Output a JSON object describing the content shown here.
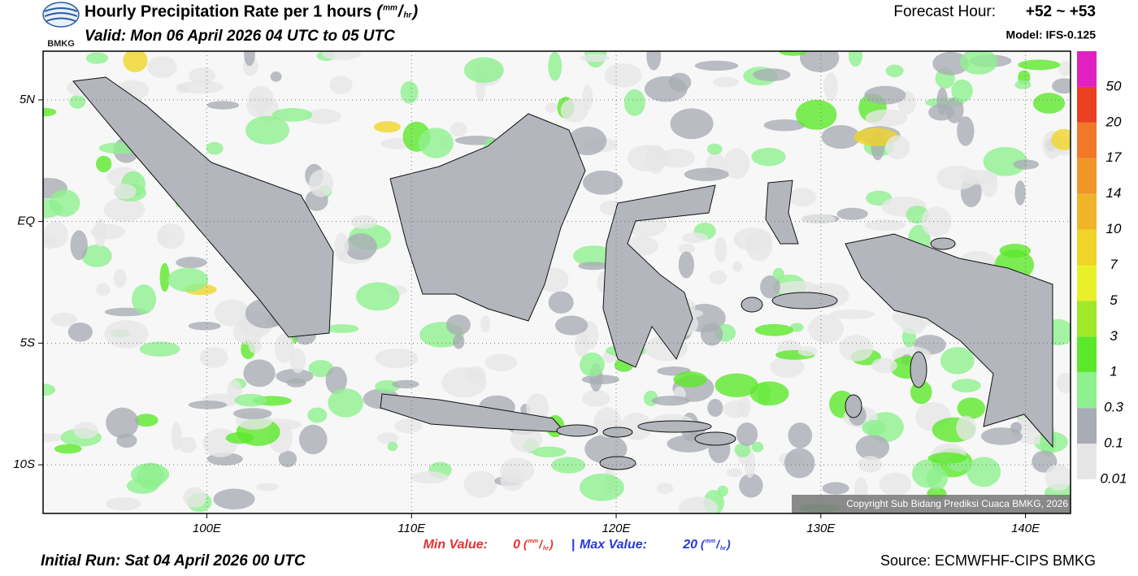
{
  "header": {
    "logo": "BMKG",
    "title": "Hourly Precipitation Rate per 1 hours",
    "unit": {
      "open": "(",
      "num": "mm",
      "sep": "/",
      "den": "hr",
      "close": ")"
    },
    "valid": "Valid: Mon 06 April 2026 04 UTC to 05 UTC",
    "forecast_hour_label": "Forecast Hour:",
    "forecast_hour": "+52 ~ +53",
    "model": "Model: IFS-0.125"
  },
  "map": {
    "lonlim": [
      92,
      142.2
    ],
    "latlim": [
      -12,
      7
    ],
    "lon_ticks": [
      {
        "value": 100,
        "label": "100E"
      },
      {
        "value": 110,
        "label": "110E"
      },
      {
        "value": 120,
        "label": "120E"
      },
      {
        "value": 130,
        "label": "130E"
      },
      {
        "value": 140,
        "label": "140E"
      }
    ],
    "lat_ticks": [
      {
        "value": 5,
        "label": "5N"
      },
      {
        "value": 0,
        "label": "EQ"
      },
      {
        "value": -5,
        "label": "5S"
      },
      {
        "value": -10,
        "label": "10S"
      }
    ],
    "copyright": "Copyright Sub Bidang Prediksi Cuaca BMKG, 2026"
  },
  "colorbar": {
    "levels": [
      0.01,
      0.1,
      0.3,
      1,
      3,
      5,
      7,
      10,
      14,
      17,
      20,
      50
    ],
    "colors": [
      "#e6e6e6",
      "#a9acb4",
      "#8ef08e",
      "#5ce82a",
      "#9fe82a",
      "#e8f02a",
      "#f0d428",
      "#f0b428",
      "#f09628",
      "#f07828",
      "#e84020",
      "#e020c0"
    ]
  },
  "footer": {
    "min_label": "Min Value:",
    "min_value": "0",
    "separator": "|",
    "max_label": "Max Value:",
    "max_value": "20",
    "initial_run": "Initial Run: Sat 04 April 2026 00 UTC",
    "source": "Source: ECMWFHF-CIPS BMKG"
  }
}
